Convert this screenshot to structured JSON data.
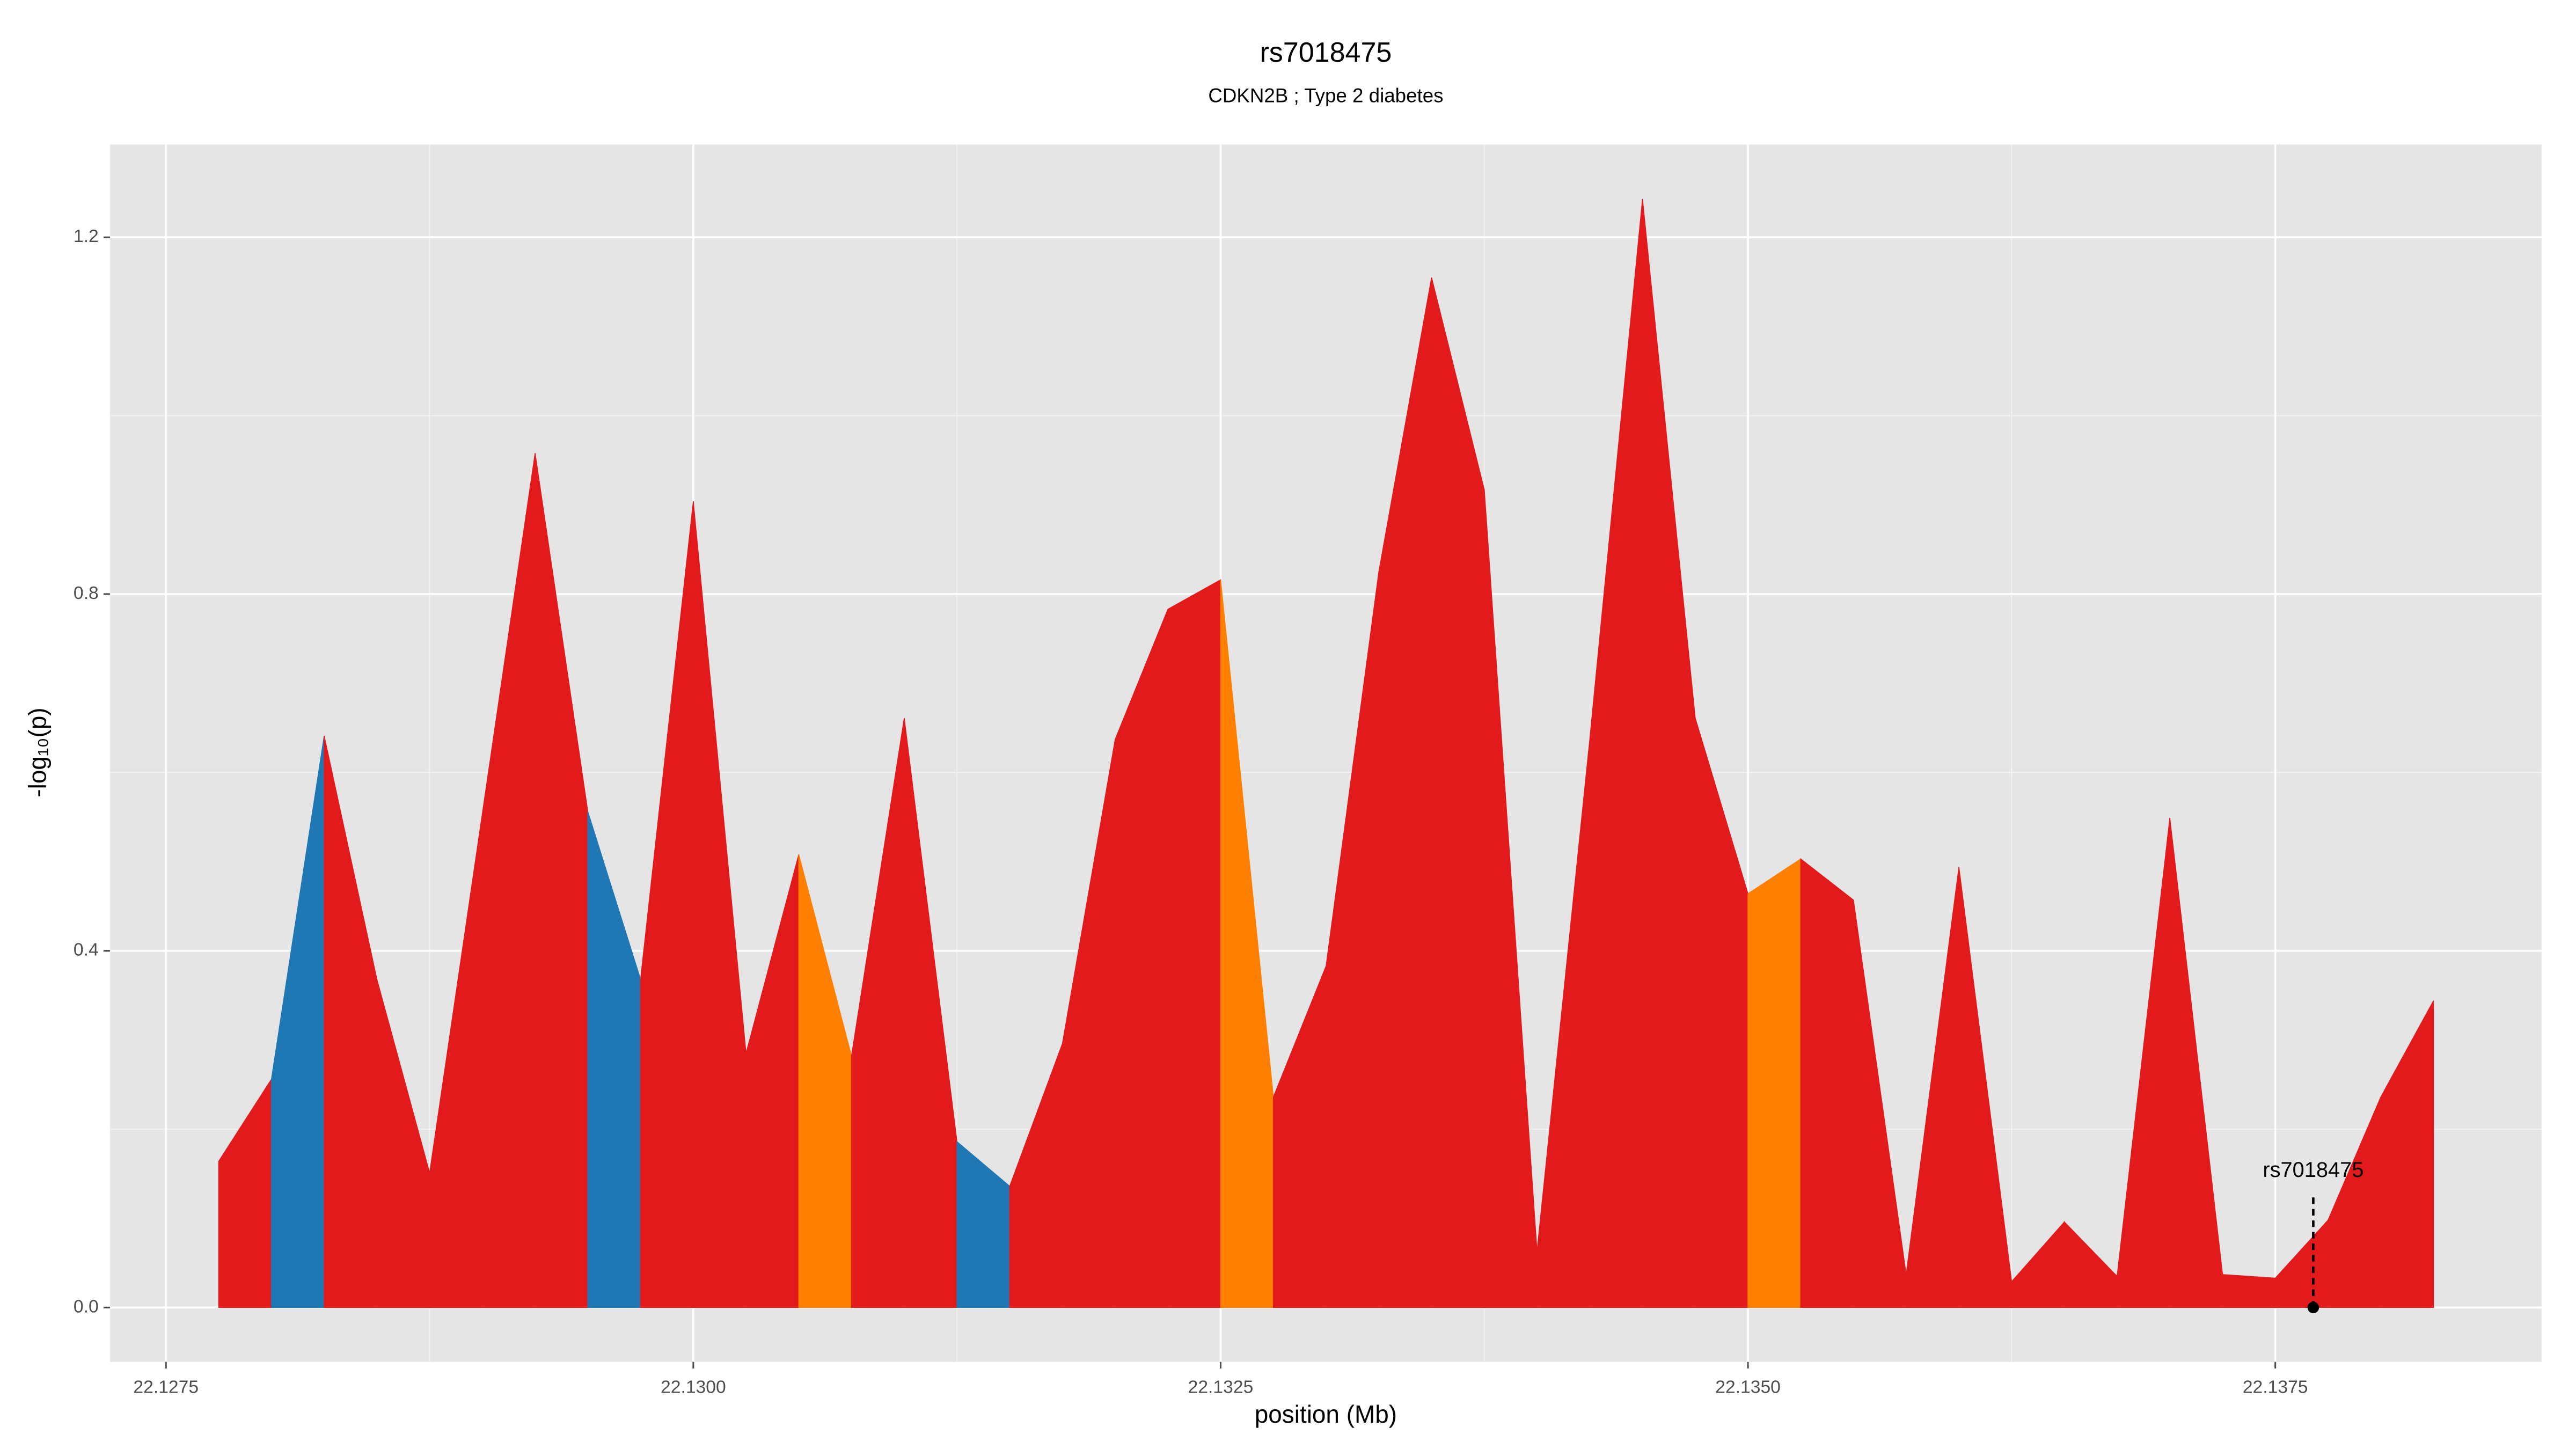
{
  "chart_data": {
    "type": "area",
    "title": "rs7018475",
    "subtitle": "CDKN2B ; Type 2 diabetes",
    "xlabel": "position (Mb)",
    "ylabel": "-log₁₀(p)",
    "x": [
      22.12775,
      22.128,
      22.12825,
      22.1285,
      22.12875,
      22.129,
      22.12925,
      22.1295,
      22.12975,
      22.13,
      22.13025,
      22.1305,
      22.13075,
      22.131,
      22.13125,
      22.1315,
      22.13175,
      22.132,
      22.13225,
      22.1325,
      22.13275,
      22.133,
      22.13325,
      22.1335,
      22.13375,
      22.134,
      22.13425,
      22.1345,
      22.13475,
      22.135,
      22.13525,
      22.1355,
      22.13575,
      22.136,
      22.13625,
      22.1365,
      22.13675,
      22.137,
      22.13725,
      22.1375,
      22.13775,
      22.138,
      22.13825
    ],
    "values": [
      0.164,
      0.256,
      0.641,
      0.368,
      0.151,
      0.554,
      0.958,
      0.556,
      0.368,
      0.904,
      0.285,
      0.508,
      0.282,
      0.661,
      0.186,
      0.136,
      0.296,
      0.637,
      0.783,
      0.816,
      0.236,
      0.383,
      0.825,
      1.155,
      0.917,
      0.063,
      0.637,
      1.243,
      0.661,
      0.464,
      0.503,
      0.457,
      0.037,
      0.494,
      0.029,
      0.096,
      0.035,
      0.549,
      0.037,
      0.033,
      0.098,
      0.236,
      0.344
    ],
    "segment_colors": [
      "#e31a1c",
      "#1f78b4",
      "#e31a1c",
      "#e31a1c",
      "#e31a1c",
      "#e31a1c",
      "#e31a1c",
      "#1f78b4",
      "#e31a1c",
      "#e31a1c",
      "#e31a1c",
      "#ff7f00",
      "#e31a1c",
      "#e31a1c",
      "#1f78b4",
      "#e31a1c",
      "#e31a1c",
      "#e31a1c",
      "#e31a1c",
      "#ff7f00",
      "#e31a1c",
      "#e31a1c",
      "#e31a1c",
      "#e31a1c",
      "#e31a1c",
      "#e31a1c",
      "#e31a1c",
      "#e31a1c",
      "#e31a1c",
      "#ff7f00",
      "#e31a1c",
      "#e31a1c",
      "#e31a1c",
      "#e31a1c",
      "#e31a1c",
      "#e31a1c",
      "#e31a1c",
      "#e31a1c",
      "#e31a1c",
      "#e31a1c",
      "#e31a1c",
      "#e31a1c"
    ],
    "annotation": {
      "label": "rs7018475",
      "x": 22.13768,
      "y": 0
    },
    "xlim": [
      22.127235,
      22.138762
    ],
    "ylim": [
      -0.061,
      1.304
    ],
    "xticks": [
      22.1275,
      {
        "value": 22.13,
        "label": "22.1300"
      },
      22.1325,
      {
        "value": 22.135,
        "label": "22.1350"
      },
      22.1375
    ],
    "yticks": [
      {
        "value": 0,
        "label": "0.0"
      },
      0.4,
      0.8,
      1.2
    ],
    "grid": true
  }
}
